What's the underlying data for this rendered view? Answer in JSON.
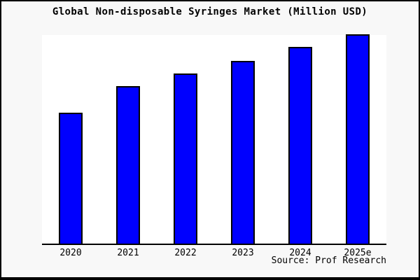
{
  "window": {
    "background_color": "#f8f8f8",
    "border_color": "#000000",
    "plot_background_color": "#ffffff"
  },
  "title": "Global Non-disposable Syringes Market (Million USD)",
  "source": "Source: Prof Research",
  "chart_data": {
    "type": "bar",
    "title": "Global Non-disposable Syringes Market (Million USD)",
    "categories": [
      "2020",
      "2021",
      "2022",
      "2023",
      "2024",
      "2025e"
    ],
    "values": [
      62.5,
      75.3,
      81.3,
      87.6,
      94.0,
      100.0
    ],
    "value_basis": "relative heights (no y-axis tick labels shown in chart; tallest bar 2025e = 100)",
    "xlabel": "",
    "ylabel": "",
    "ylim": [
      0,
      100.5
    ],
    "grid": false,
    "legend": false,
    "bar_color": "#0000fe",
    "bar_border_color": "#000000",
    "annotations": [
      "Source: Prof Research"
    ]
  }
}
